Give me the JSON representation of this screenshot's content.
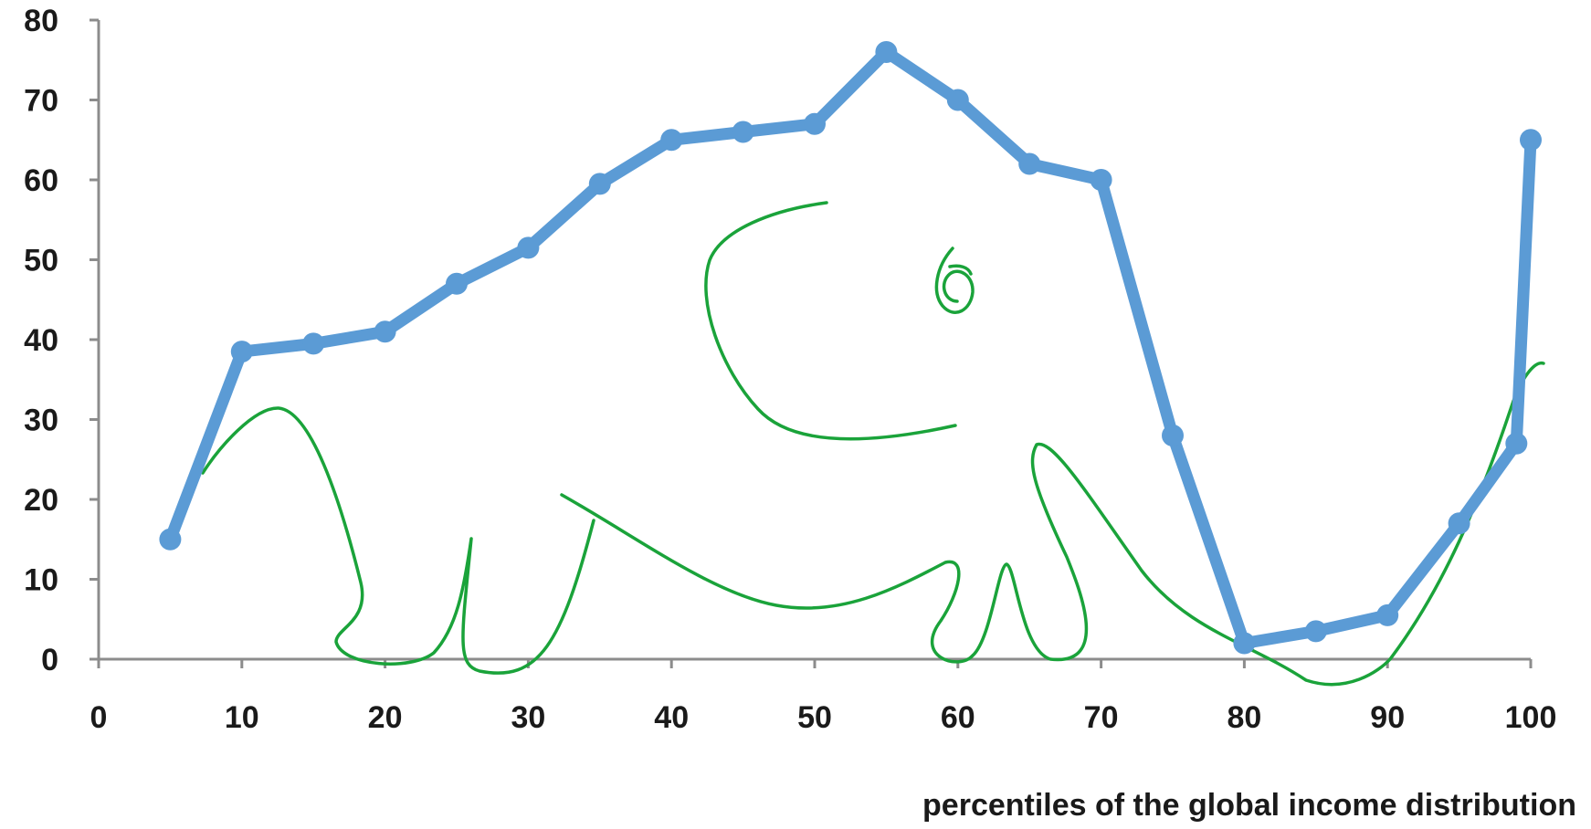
{
  "chart_data": {
    "type": "line",
    "title": "",
    "xlabel": "percentiles of the global income distribution",
    "ylabel": "",
    "xlim": [
      0,
      100
    ],
    "ylim": [
      0,
      80
    ],
    "xticks": [
      0,
      10,
      20,
      30,
      40,
      50,
      60,
      70,
      80,
      90,
      100
    ],
    "yticks": [
      0,
      10,
      20,
      30,
      40,
      50,
      60,
      70,
      80
    ],
    "grid": false,
    "legend": "none",
    "series": [
      {
        "color": "#5b9bd5",
        "x": [
          5,
          10,
          15,
          20,
          25,
          30,
          35,
          40,
          45,
          50,
          55,
          60,
          65,
          70,
          75,
          80,
          85,
          90,
          95,
          99,
          100
        ],
        "y": [
          15,
          38.5,
          39.5,
          41,
          47,
          51.5,
          59.5,
          65,
          66,
          67,
          76,
          70,
          62,
          60,
          28,
          2,
          3.5,
          5.5,
          17,
          27,
          65
        ]
      }
    ],
    "annotation": {
      "type": "hand-drawn elephant sketch",
      "color": "#1aa33a"
    }
  }
}
